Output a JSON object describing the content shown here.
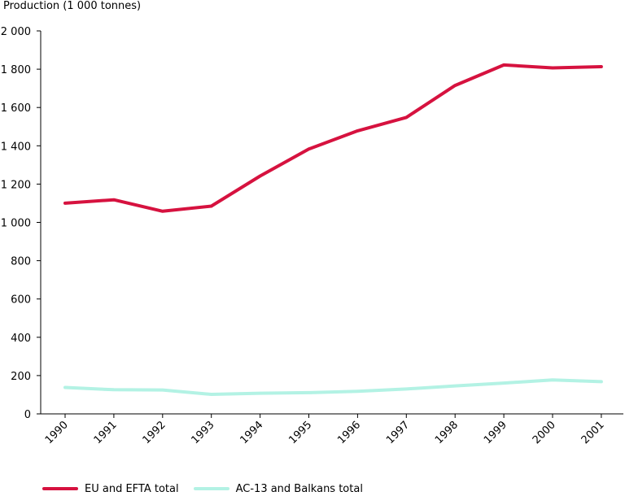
{
  "chart_data": {
    "type": "line",
    "title": "",
    "ylabel": "Production (1 000 tonnes)",
    "xlabel": "",
    "x": [
      "1990",
      "1991",
      "1992",
      "1993",
      "1994",
      "1995",
      "1996",
      "1997",
      "1998",
      "1999",
      "2000",
      "2001"
    ],
    "ylim": [
      0,
      2000
    ],
    "yticks": [
      0,
      200,
      400,
      600,
      800,
      1000,
      1200,
      1400,
      1600,
      1800,
      2000
    ],
    "ytick_labels": [
      "0",
      "200",
      "400",
      "600",
      "800",
      "1 000",
      "1 200",
      "1 400",
      "1 600",
      "1 800",
      "2 000"
    ],
    "grid": false,
    "legend_position": "bottom",
    "series": [
      {
        "name": "EU and EFTA total",
        "color": "#d6123f",
        "values": [
          1100,
          1118,
          1058,
          1085,
          1242,
          1383,
          1478,
          1548,
          1715,
          1822,
          1807,
          1813
        ]
      },
      {
        "name": "AC-13 and Balkans total",
        "color": "#b3f2e4",
        "values": [
          138,
          126,
          125,
          102,
          108,
          111,
          118,
          130,
          146,
          161,
          177,
          168
        ]
      }
    ]
  }
}
